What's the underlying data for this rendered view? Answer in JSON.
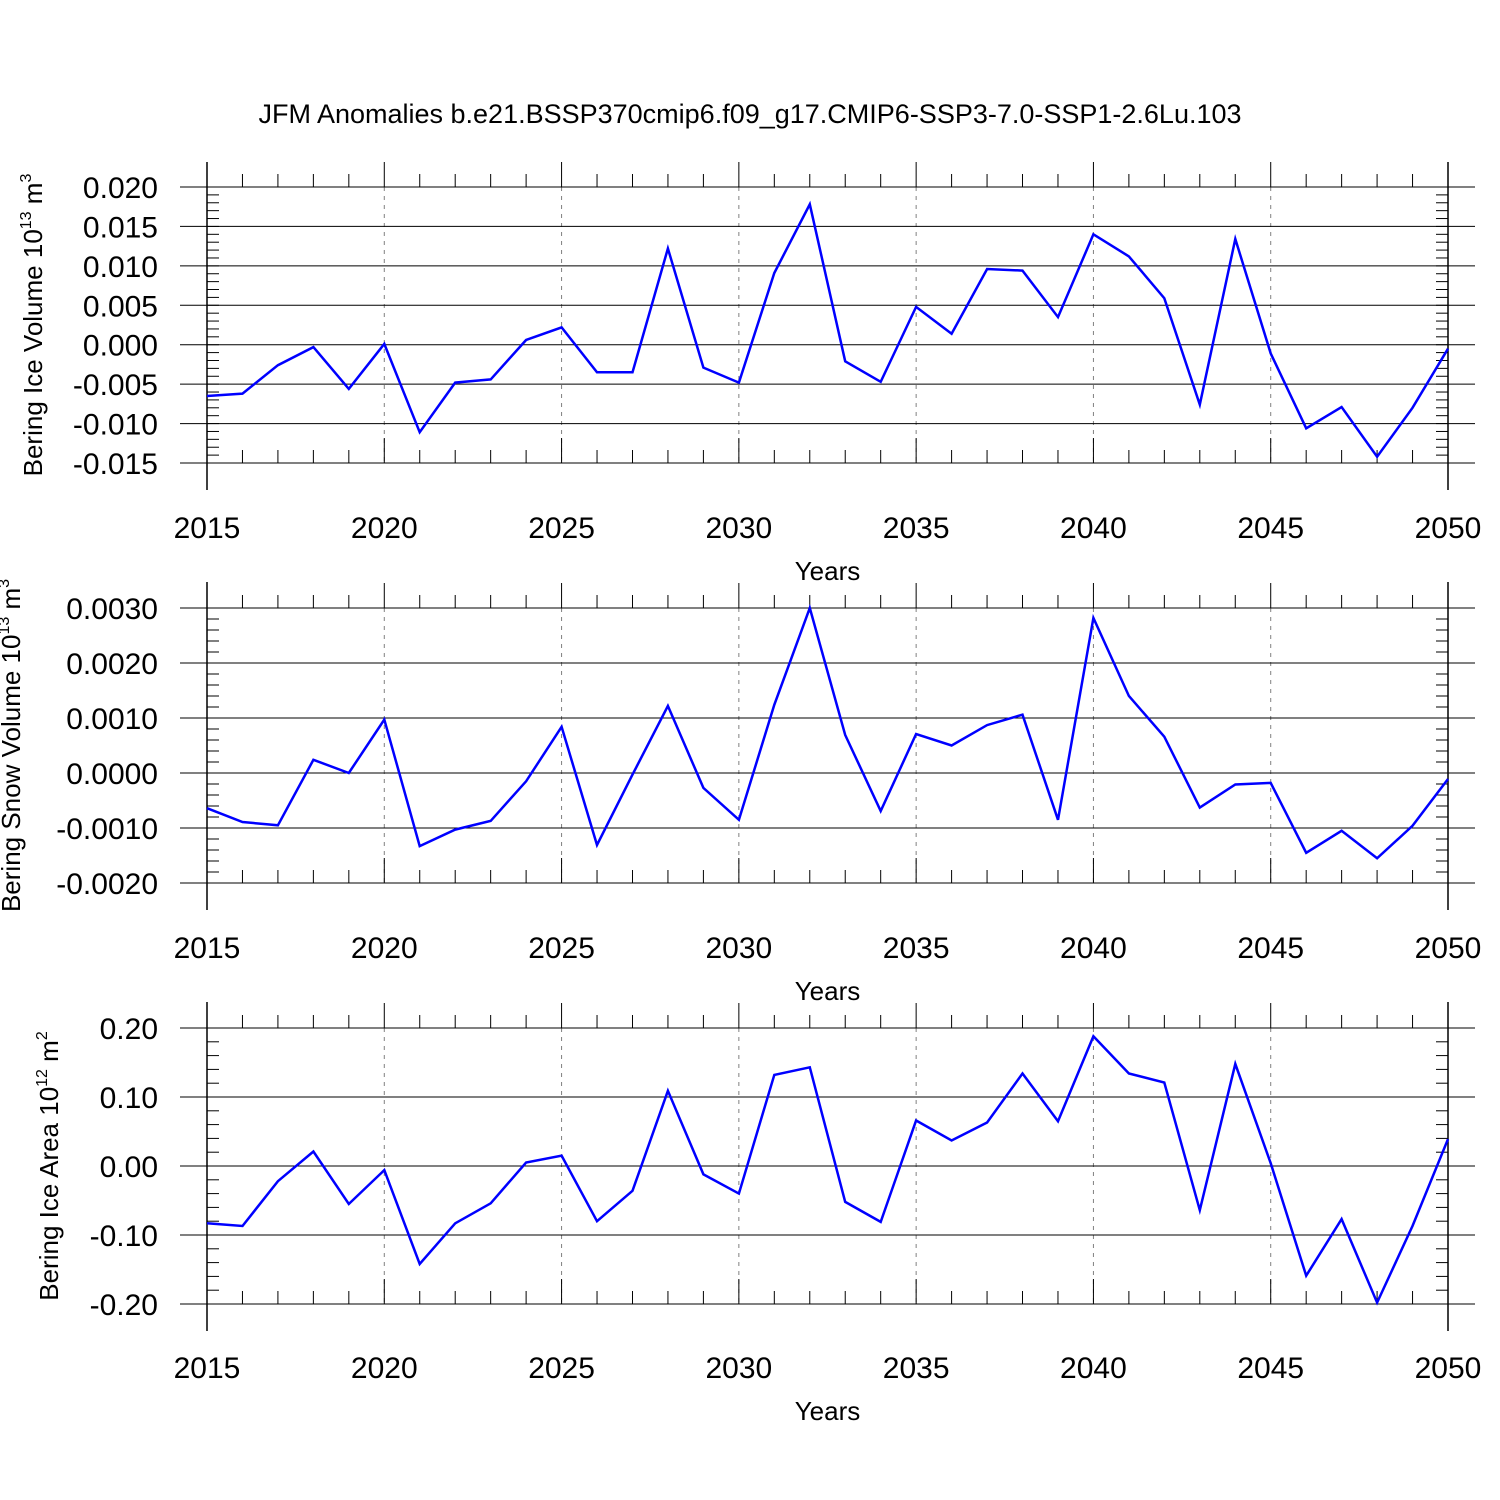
{
  "title": "JFM Anomalies b.e21.BSSP370cmip6.f09_g17.CMIP6-SSP3-7.0-SSP1-2.6Lu.103",
  "colors": {
    "line": "#0000ff",
    "axis": "#000000",
    "grid": "#808080"
  },
  "chart_data": [
    {
      "type": "line",
      "ylabel": {
        "text": "Bering Ice Volume 10",
        "sup1": "13",
        "unit": " m",
        "sup2": "3"
      },
      "xlabel": "Years",
      "xlim": [
        2015,
        2050
      ],
      "ylim": [
        -0.015,
        0.02
      ],
      "xticks": [
        2015,
        2020,
        2025,
        2030,
        2035,
        2040,
        2045,
        2050
      ],
      "xtick_labels": [
        "2015",
        "2020",
        "2025",
        "2030",
        "2035",
        "2040",
        "2045",
        "2050"
      ],
      "yticks": [
        -0.015,
        -0.01,
        -0.005,
        0.0,
        0.005,
        0.01,
        0.015,
        0.02
      ],
      "ytick_labels": [
        "-0.015",
        "-0.010",
        "-0.005",
        "0.000",
        "0.005",
        "0.010",
        "0.015",
        "0.020"
      ],
      "ymin_step": 0.001,
      "series": [
        {
          "name": "Bering Ice Volume",
          "x": [
            2015,
            2016,
            2017,
            2018,
            2019,
            2020,
            2021,
            2022,
            2023,
            2024,
            2025,
            2026,
            2027,
            2028,
            2029,
            2030,
            2031,
            2032,
            2033,
            2034,
            2035,
            2036,
            2037,
            2038,
            2039,
            2040,
            2041,
            2042,
            2043,
            2044,
            2045,
            2046,
            2047,
            2048,
            2049,
            2050
          ],
          "values": [
            -0.0065,
            -0.0062,
            -0.0026,
            -0.0003,
            -0.0056,
            0.0001,
            -0.0111,
            -0.0048,
            -0.0044,
            0.0006,
            0.0022,
            -0.0035,
            -0.0035,
            0.0122,
            -0.0029,
            -0.0048,
            0.0091,
            0.0178,
            -0.0021,
            -0.0047,
            0.0048,
            0.0014,
            0.0096,
            0.0094,
            0.0035,
            0.014,
            0.0112,
            0.0059,
            -0.0076,
            0.0134,
            -0.0011,
            -0.0106,
            -0.0079,
            -0.0142,
            -0.008,
            -0.0005
          ]
        }
      ]
    },
    {
      "type": "line",
      "ylabel": {
        "text": "Bering Snow Volume 10",
        "sup1": "13",
        "unit": " m",
        "sup2": "3"
      },
      "xlabel": "Years",
      "xlim": [
        2015,
        2050
      ],
      "ylim": [
        -0.002,
        0.003
      ],
      "xticks": [
        2015,
        2020,
        2025,
        2030,
        2035,
        2040,
        2045,
        2050
      ],
      "xtick_labels": [
        "2015",
        "2020",
        "2025",
        "2030",
        "2035",
        "2040",
        "2045",
        "2050"
      ],
      "yticks": [
        -0.002,
        -0.001,
        0.0,
        0.001,
        0.002,
        0.003
      ],
      "ytick_labels": [
        "-0.0020",
        "-0.0010",
        "0.0000",
        "0.0010",
        "0.0020",
        "0.0030"
      ],
      "ymin_step": 0.0002,
      "series": [
        {
          "name": "Bering Snow Volume",
          "x": [
            2015,
            2016,
            2017,
            2018,
            2019,
            2020,
            2021,
            2022,
            2023,
            2024,
            2025,
            2026,
            2027,
            2028,
            2029,
            2030,
            2031,
            2032,
            2033,
            2034,
            2035,
            2036,
            2037,
            2038,
            2039,
            2040,
            2041,
            2042,
            2043,
            2044,
            2045,
            2046,
            2047,
            2048,
            2049,
            2050
          ],
          "values": [
            -0.00064,
            -0.00089,
            -0.00095,
            0.00024,
            0.0,
            0.00097,
            -0.00133,
            -0.00103,
            -0.00087,
            -0.00015,
            0.00084,
            -0.00131,
            -3e-05,
            0.00122,
            -0.00027,
            -0.00085,
            0.00124,
            0.003,
            0.00069,
            -0.00069,
            0.00071,
            0.0005,
            0.00087,
            0.00106,
            -0.00085,
            0.00282,
            0.0014,
            0.00066,
            -0.00063,
            -0.00021,
            -0.00018,
            -0.00145,
            -0.00105,
            -0.00155,
            -0.00096,
            -0.00011
          ]
        }
      ]
    },
    {
      "type": "line",
      "ylabel": {
        "text": "Bering Ice Area 10",
        "sup1": "12",
        "unit": " m",
        "sup2": "2"
      },
      "xlabel": "Years",
      "xlim": [
        2015,
        2050
      ],
      "ylim": [
        -0.2,
        0.2
      ],
      "xticks": [
        2015,
        2020,
        2025,
        2030,
        2035,
        2040,
        2045,
        2050
      ],
      "xtick_labels": [
        "2015",
        "2020",
        "2025",
        "2030",
        "2035",
        "2040",
        "2045",
        "2050"
      ],
      "yticks": [
        -0.2,
        -0.1,
        0.0,
        0.1,
        0.2
      ],
      "ytick_labels": [
        "-0.20",
        "-0.10",
        "0.00",
        "0.10",
        "0.20"
      ],
      "ymin_step": 0.02,
      "series": [
        {
          "name": "Bering Ice Area",
          "x": [
            2015,
            2016,
            2017,
            2018,
            2019,
            2020,
            2021,
            2022,
            2023,
            2024,
            2025,
            2026,
            2027,
            2028,
            2029,
            2030,
            2031,
            2032,
            2033,
            2034,
            2035,
            2036,
            2037,
            2038,
            2039,
            2040,
            2041,
            2042,
            2043,
            2044,
            2045,
            2046,
            2047,
            2048,
            2049,
            2050
          ],
          "values": [
            -0.083,
            -0.087,
            -0.022,
            0.021,
            -0.055,
            -0.006,
            -0.142,
            -0.083,
            -0.054,
            0.005,
            0.015,
            -0.08,
            -0.036,
            0.109,
            -0.012,
            -0.04,
            0.132,
            0.143,
            -0.052,
            -0.081,
            0.066,
            0.037,
            0.063,
            0.134,
            0.065,
            0.188,
            0.134,
            0.121,
            -0.064,
            0.148,
            0.004,
            -0.159,
            -0.077,
            -0.198,
            -0.087,
            0.039
          ]
        }
      ]
    }
  ]
}
